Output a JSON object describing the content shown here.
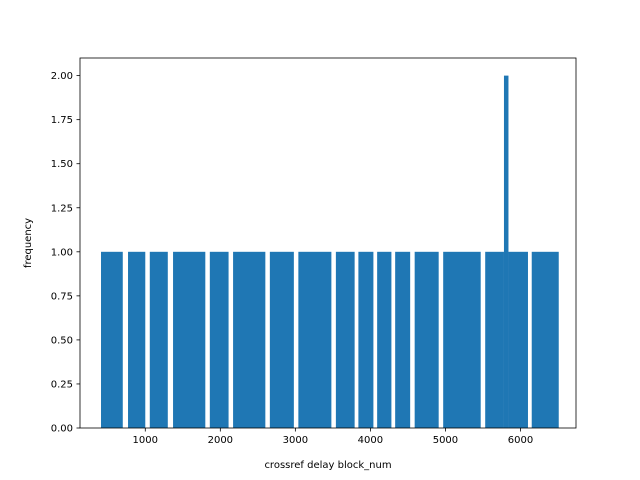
{
  "chart_data": {
    "type": "bar",
    "title": "",
    "xlabel": "crossref delay block_num",
    "ylabel": "frequency",
    "xlim": [
      130,
      6740
    ],
    "ylim": [
      0,
      2.1
    ],
    "grid": false,
    "bar_color": "#1f77b4",
    "bars": [
      {
        "x0": 410,
        "x1": 700,
        "value": 1
      },
      {
        "x0": 770,
        "x1": 1000,
        "value": 1
      },
      {
        "x0": 1060,
        "x1": 1300,
        "value": 1
      },
      {
        "x0": 1370,
        "x1": 1800,
        "value": 1
      },
      {
        "x0": 1860,
        "x1": 2110,
        "value": 1
      },
      {
        "x0": 2170,
        "x1": 2600,
        "value": 1
      },
      {
        "x0": 2660,
        "x1": 2980,
        "value": 1
      },
      {
        "x0": 3040,
        "x1": 3480,
        "value": 1
      },
      {
        "x0": 3540,
        "x1": 3790,
        "value": 1
      },
      {
        "x0": 3840,
        "x1": 4040,
        "value": 1
      },
      {
        "x0": 4090,
        "x1": 4280,
        "value": 1
      },
      {
        "x0": 4330,
        "x1": 4530,
        "value": 1
      },
      {
        "x0": 4590,
        "x1": 4910,
        "value": 1
      },
      {
        "x0": 4970,
        "x1": 5470,
        "value": 1
      },
      {
        "x0": 5530,
        "x1": 5780,
        "value": 1
      },
      {
        "x0": 5780,
        "x1": 5840,
        "value": 2
      },
      {
        "x0": 5840,
        "x1": 6100,
        "value": 1
      },
      {
        "x0": 6150,
        "x1": 6510,
        "value": 1
      }
    ],
    "xticks": [
      {
        "value": 1000,
        "label": "1000"
      },
      {
        "value": 2000,
        "label": "2000"
      },
      {
        "value": 3000,
        "label": "3000"
      },
      {
        "value": 4000,
        "label": "4000"
      },
      {
        "value": 5000,
        "label": "5000"
      },
      {
        "value": 6000,
        "label": "6000"
      }
    ],
    "yticks": [
      {
        "value": 0,
        "label": "0.00"
      },
      {
        "value": 0.25,
        "label": "0.25"
      },
      {
        "value": 0.5,
        "label": "0.50"
      },
      {
        "value": 0.75,
        "label": "0.75"
      },
      {
        "value": 1.0,
        "label": "1.00"
      },
      {
        "value": 1.25,
        "label": "1.25"
      },
      {
        "value": 1.5,
        "label": "1.50"
      },
      {
        "value": 1.75,
        "label": "1.75"
      },
      {
        "value": 2.0,
        "label": "2.00"
      }
    ]
  }
}
